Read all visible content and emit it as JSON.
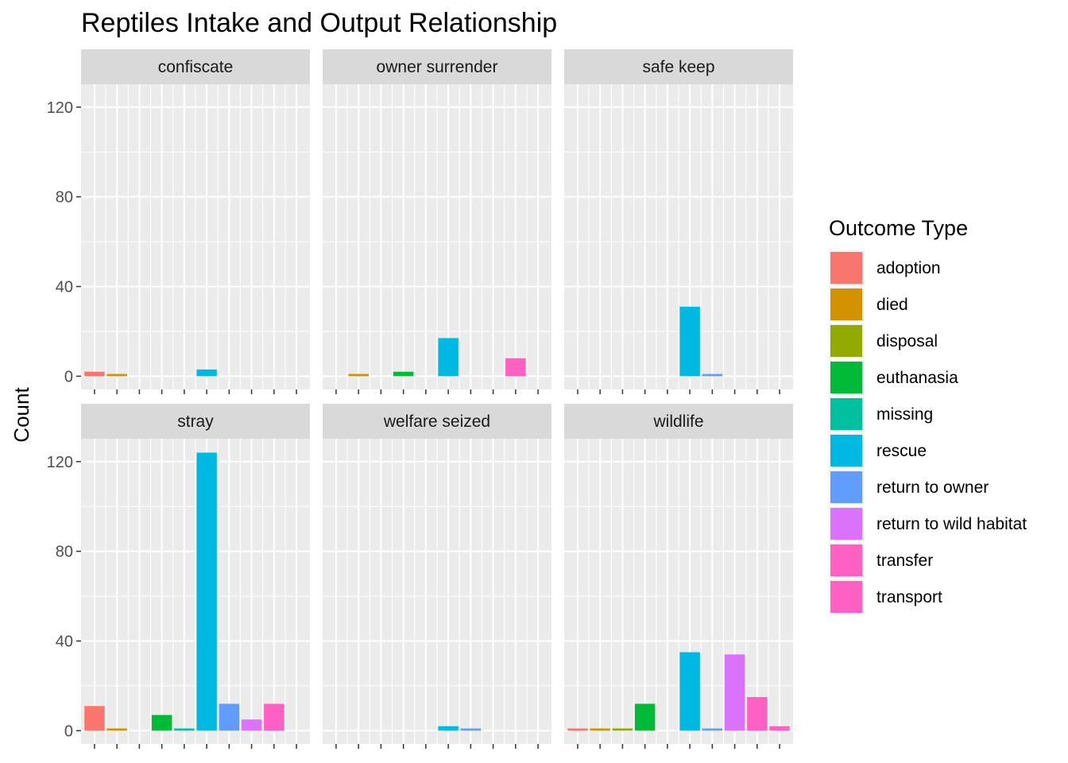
{
  "chart_data": {
    "type": "bar",
    "title": "Reptiles Intake and Output Relationship",
    "xlabel": "",
    "ylabel": "Count",
    "ylim": [
      0,
      124
    ],
    "yticks": [
      0,
      40,
      80,
      120
    ],
    "grid": true,
    "facet_layout": "2x3",
    "categories": [
      "adoption",
      "died",
      "disposal",
      "euthanasia",
      "missing",
      "rescue",
      "return to owner",
      "return to wild habitat",
      "transfer",
      "transport"
    ],
    "colors": [
      "#F8766D",
      "#D39200",
      "#93AA00",
      "#00BA38",
      "#00C19F",
      "#00B9E3",
      "#619CFF",
      "#DB72FB",
      "#FF61C3",
      "#FF61C3"
    ],
    "legend": {
      "title": "Outcome Type",
      "position": "right",
      "items": [
        {
          "label": "adoption",
          "color": "#F8766D"
        },
        {
          "label": "died",
          "color": "#D39200"
        },
        {
          "label": "disposal",
          "color": "#93AA00"
        },
        {
          "label": "euthanasia",
          "color": "#00BA38"
        },
        {
          "label": "missing",
          "color": "#00C19F"
        },
        {
          "label": "rescue",
          "color": "#00B9E3"
        },
        {
          "label": "return to owner",
          "color": "#619CFF"
        },
        {
          "label": "return to wild habitat",
          "color": "#DB72FB"
        },
        {
          "label": "transfer",
          "color": "#FF61C3"
        },
        {
          "label": "transport",
          "color": "#FF61C3"
        }
      ]
    },
    "facets": [
      {
        "name": "confiscate",
        "values": [
          2,
          1,
          0,
          0,
          0,
          3,
          0,
          0,
          0,
          0
        ]
      },
      {
        "name": "owner surrender",
        "values": [
          0,
          1,
          0,
          2,
          0,
          17,
          0,
          0,
          8,
          0
        ]
      },
      {
        "name": "safe keep",
        "values": [
          0,
          0,
          0,
          0,
          0,
          31,
          1,
          0,
          0,
          0
        ]
      },
      {
        "name": "stray",
        "values": [
          11,
          1,
          0,
          7,
          1,
          124,
          12,
          5,
          12,
          0
        ]
      },
      {
        "name": "welfare seized",
        "values": [
          0,
          0,
          0,
          0,
          0,
          2,
          1,
          0,
          0,
          0
        ]
      },
      {
        "name": "wildlife",
        "values": [
          1,
          1,
          1,
          12,
          0,
          35,
          1,
          34,
          15,
          2
        ]
      }
    ]
  }
}
